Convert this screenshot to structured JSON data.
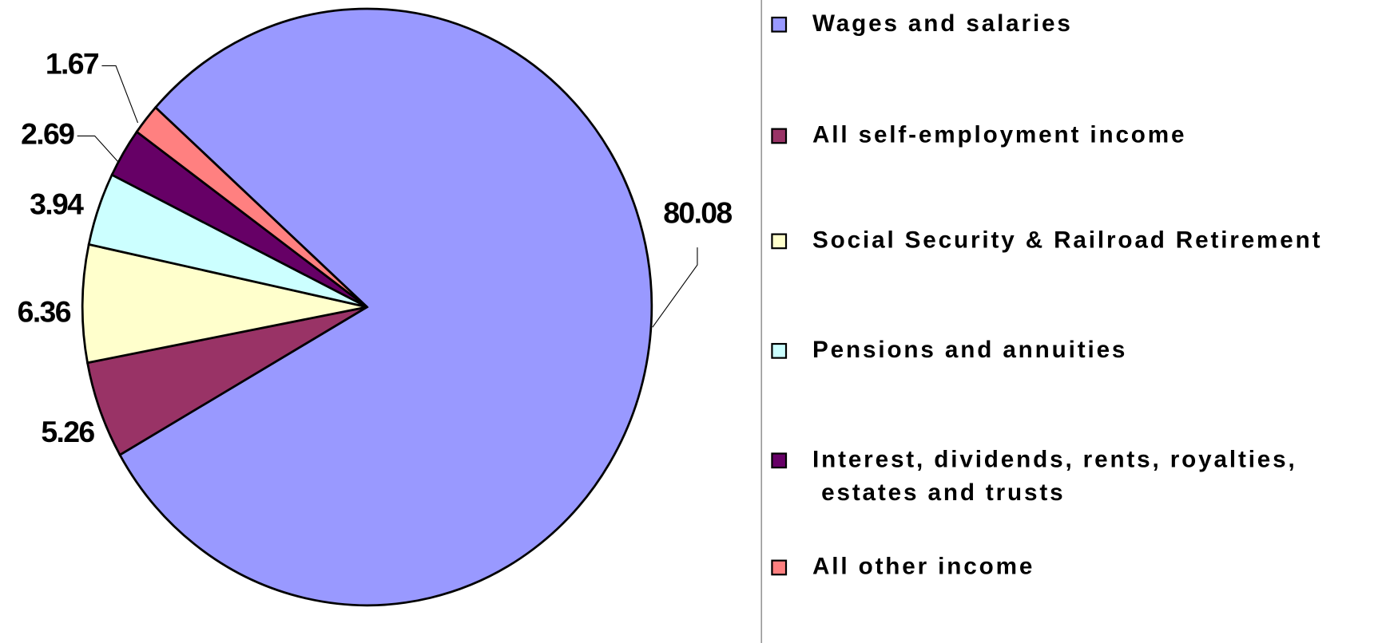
{
  "chart_data": {
    "type": "pie",
    "categories": [
      "Wages and salaries",
      "All self-employment income",
      "Social Security & Railroad Retirement",
      "Pensions and annuities",
      "Interest, dividends, rents, royalties,\n estates and trusts",
      "All other income"
    ],
    "values": [
      80.08,
      5.26,
      6.36,
      3.94,
      2.69,
      1.67
    ],
    "colors": [
      "#9999ff",
      "#993366",
      "#ffffcc",
      "#ccffff",
      "#660066",
      "#ff8080"
    ]
  }
}
